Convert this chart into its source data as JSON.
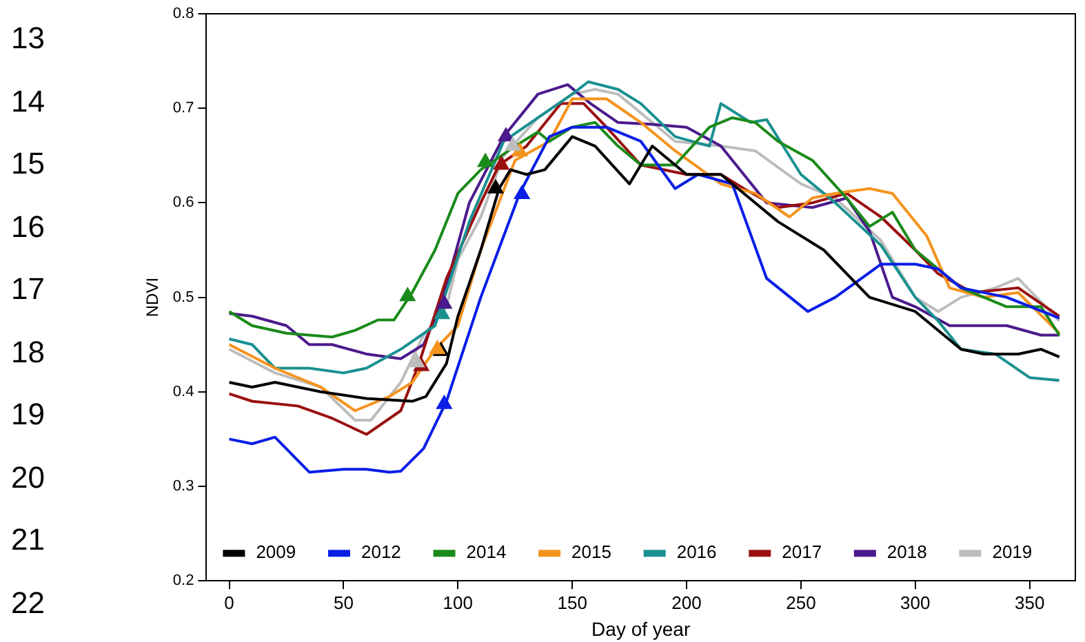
{
  "chart_data": {
    "type": "line",
    "xlabel": "Day of year",
    "ylabel": "NDVI",
    "xlim": [
      -10,
      370
    ],
    "xticks": [
      0,
      50,
      100,
      150,
      200,
      250,
      300,
      350
    ],
    "ylim": [
      0.2,
      0.8
    ],
    "yticks": [
      0.2,
      0.3,
      0.4,
      0.5,
      0.6,
      0.7,
      0.8
    ],
    "grid": false,
    "legend": "bottom",
    "marker": "none",
    "line_style": "solid",
    "annotations": [
      "13",
      "14",
      "15",
      "16",
      "17",
      "18",
      "19",
      "20",
      "21",
      "22"
    ],
    "series": [
      {
        "name": "2009",
        "color": "#000000",
        "x": [
          0,
          10,
          20,
          40,
          60,
          80,
          86,
          95,
          100,
          110,
          118,
          123,
          130,
          138,
          150,
          160,
          175,
          185,
          200,
          215,
          225,
          240,
          260,
          280,
          300,
          320,
          330,
          345,
          355,
          363
        ],
        "values": [
          0.41,
          0.405,
          0.41,
          0.4,
          0.393,
          0.39,
          0.395,
          0.43,
          0.48,
          0.55,
          0.615,
          0.635,
          0.63,
          0.635,
          0.67,
          0.66,
          0.62,
          0.66,
          0.63,
          0.63,
          0.61,
          0.58,
          0.55,
          0.5,
          0.485,
          0.445,
          0.44,
          0.44,
          0.445,
          0.437
        ]
      },
      {
        "name": "2012",
        "color": "#0a1ee6",
        "x": [
          0,
          10,
          20,
          35,
          50,
          60,
          70,
          75,
          85,
          95,
          110,
          127,
          140,
          150,
          165,
          180,
          195,
          205,
          220,
          235,
          253,
          265,
          285,
          300,
          310,
          320,
          340,
          363
        ],
        "values": [
          0.35,
          0.345,
          0.352,
          0.315,
          0.318,
          0.318,
          0.315,
          0.316,
          0.34,
          0.39,
          0.5,
          0.61,
          0.67,
          0.68,
          0.68,
          0.665,
          0.615,
          0.63,
          0.62,
          0.52,
          0.485,
          0.5,
          0.535,
          0.535,
          0.53,
          0.51,
          0.5,
          0.478
        ]
      },
      {
        "name": "2014",
        "color": "#1a8a1a",
        "x": [
          0,
          10,
          25,
          45,
          55,
          65,
          72,
          80,
          90,
          100,
          110,
          115,
          125,
          135,
          140,
          150,
          160,
          170,
          180,
          195,
          210,
          220,
          230,
          240,
          255,
          270,
          280,
          290,
          300,
          320,
          340,
          355,
          363
        ],
        "values": [
          0.485,
          0.47,
          0.462,
          0.458,
          0.465,
          0.476,
          0.476,
          0.505,
          0.55,
          0.61,
          0.635,
          0.643,
          0.66,
          0.675,
          0.665,
          0.68,
          0.685,
          0.66,
          0.64,
          0.64,
          0.68,
          0.69,
          0.685,
          0.665,
          0.645,
          0.605,
          0.575,
          0.59,
          0.55,
          0.51,
          0.49,
          0.49,
          0.46
        ]
      },
      {
        "name": "2015",
        "color": "#f5931e",
        "x": [
          0,
          20,
          40,
          55,
          70,
          80,
          90,
          100,
          110,
          125,
          140,
          150,
          165,
          180,
          195,
          215,
          230,
          245,
          255,
          265,
          280,
          290,
          305,
          315,
          330,
          345,
          363
        ],
        "values": [
          0.45,
          0.425,
          0.405,
          0.38,
          0.395,
          0.41,
          0.445,
          0.47,
          0.55,
          0.645,
          0.665,
          0.71,
          0.71,
          0.685,
          0.655,
          0.62,
          0.61,
          0.585,
          0.605,
          0.61,
          0.615,
          0.61,
          0.565,
          0.51,
          0.5,
          0.505,
          0.462
        ]
      },
      {
        "name": "2016",
        "color": "#1a9090",
        "x": [
          0,
          10,
          20,
          35,
          50,
          60,
          75,
          90,
          105,
          120,
          135,
          150,
          157,
          170,
          180,
          195,
          210,
          215,
          228,
          235,
          250,
          265,
          285,
          300,
          310,
          320,
          335,
          350,
          363
        ],
        "values": [
          0.456,
          0.45,
          0.425,
          0.425,
          0.42,
          0.425,
          0.445,
          0.47,
          0.58,
          0.665,
          0.69,
          0.715,
          0.728,
          0.72,
          0.705,
          0.67,
          0.66,
          0.705,
          0.685,
          0.688,
          0.63,
          0.6,
          0.555,
          0.5,
          0.475,
          0.445,
          0.44,
          0.415,
          0.412
        ]
      },
      {
        "name": "2017",
        "color": "#9a0f0f",
        "x": [
          0,
          10,
          30,
          45,
          60,
          75,
          83,
          95,
          110,
          118,
          130,
          145,
          155,
          165,
          180,
          200,
          215,
          225,
          240,
          255,
          270,
          285,
          300,
          310,
          325,
          345,
          363
        ],
        "values": [
          0.398,
          0.39,
          0.385,
          0.372,
          0.355,
          0.38,
          0.43,
          0.52,
          0.6,
          0.64,
          0.66,
          0.705,
          0.705,
          0.68,
          0.64,
          0.63,
          0.63,
          0.615,
          0.595,
          0.6,
          0.61,
          0.585,
          0.55,
          0.525,
          0.505,
          0.51,
          0.48
        ]
      },
      {
        "name": "2018",
        "color": "#4b1a8c",
        "x": [
          0,
          10,
          25,
          35,
          45,
          60,
          75,
          85,
          93,
          105,
          120,
          135,
          148,
          158,
          170,
          185,
          200,
          215,
          235,
          255,
          270,
          280,
          290,
          300,
          315,
          330,
          340,
          355,
          363
        ],
        "values": [
          0.483,
          0.48,
          0.47,
          0.45,
          0.45,
          0.44,
          0.435,
          0.45,
          0.495,
          0.6,
          0.67,
          0.715,
          0.725,
          0.705,
          0.685,
          0.683,
          0.68,
          0.66,
          0.6,
          0.595,
          0.605,
          0.57,
          0.5,
          0.49,
          0.47,
          0.47,
          0.47,
          0.46,
          0.46
        ]
      },
      {
        "name": "2019",
        "color": "#bdbdbd",
        "x": [
          0,
          20,
          40,
          55,
          62,
          75,
          85,
          95,
          100,
          110,
          120,
          135,
          150,
          160,
          170,
          180,
          195,
          215,
          230,
          250,
          265,
          285,
          300,
          310,
          320,
          335,
          345,
          363
        ],
        "values": [
          0.445,
          0.42,
          0.405,
          0.37,
          0.37,
          0.41,
          0.46,
          0.49,
          0.54,
          0.585,
          0.65,
          0.69,
          0.715,
          0.72,
          0.715,
          0.695,
          0.665,
          0.66,
          0.655,
          0.62,
          0.605,
          0.56,
          0.5,
          0.485,
          0.5,
          0.51,
          0.52,
          0.475
        ]
      },
      {
        "type": "scatter",
        "marker": "triangle",
        "x": [
          92.6,
          94,
          78,
          91,
          93,
          84,
          94,
          82
        ],
        "values": [
          0.443,
          0.387,
          0.501,
          0.445,
          0.482,
          0.427,
          0.493,
          0.431
        ],
        "colors": [
          "#000000",
          "#0a1ee6",
          "#1a8a1a",
          "#f5931e",
          "#1a9090",
          "#9a0f0f",
          "#4b1a8c",
          "#bdbdbd"
        ]
      },
      {
        "type": "scatter",
        "marker": "triangle",
        "x": [
          116.5,
          128,
          112,
          127,
          119,
          121,
          124
        ],
        "values": [
          0.615,
          0.609,
          0.643,
          0.654,
          0.64,
          0.67,
          0.66
        ],
        "colors": [
          "#000000",
          "#0a1ee6",
          "#1a8a1a",
          "#f5931e",
          "#9a0f0f",
          "#4b1a8c",
          "#bdbdbd"
        ]
      }
    ]
  }
}
